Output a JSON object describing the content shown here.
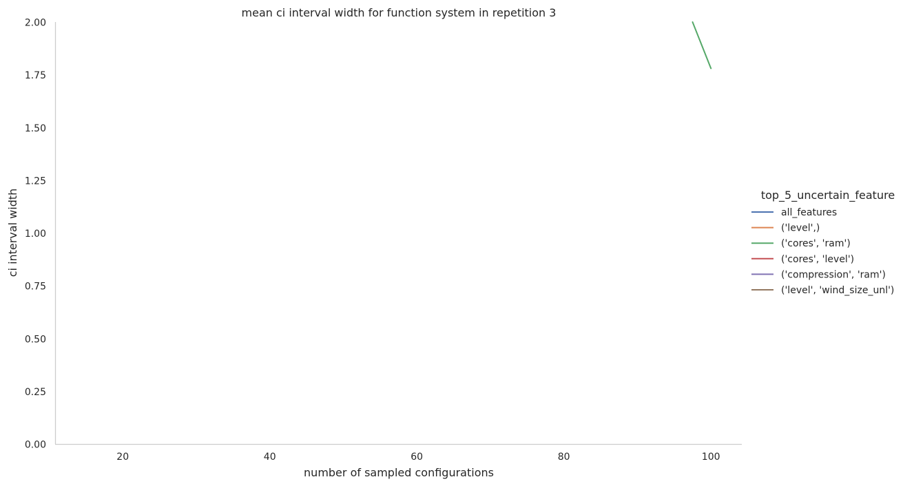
{
  "chart_data": {
    "type": "line",
    "title": "mean ci interval width for function system in repetition 3",
    "xlabel": "number of sampled configurations",
    "ylabel": "ci interval width",
    "xlim": [
      10.8,
      104.2
    ],
    "ylim": [
      0,
      2.0
    ],
    "x_ticks": [
      20,
      40,
      60,
      80,
      100
    ],
    "x_tick_labels": [
      "20",
      "40",
      "60",
      "80",
      "100"
    ],
    "y_ticks": [
      0,
      0.25,
      0.5,
      0.75,
      1.0,
      1.25,
      1.5,
      1.75,
      2.0
    ],
    "y_tick_labels": [
      "0.00",
      "0.25",
      "0.50",
      "0.75",
      "1.00",
      "1.25",
      "1.50",
      "1.75",
      "2.00"
    ],
    "grid": false,
    "legend": {
      "title": "top_5_uncertain_feature",
      "position": "center-right"
    },
    "series": [
      {
        "name": "all_features",
        "color": "#4c72b0",
        "x": [],
        "y": []
      },
      {
        "name": "('level',)",
        "color": "#dd8452",
        "x": [],
        "y": []
      },
      {
        "name": "('cores', 'ram')",
        "color": "#55a868",
        "x": [
          97.5,
          100
        ],
        "y": [
          2.0,
          1.78
        ]
      },
      {
        "name": "('cores', 'level')",
        "color": "#c44e52",
        "x": [],
        "y": []
      },
      {
        "name": "('compression', 'ram')",
        "color": "#8172b3",
        "x": [],
        "y": []
      },
      {
        "name": "('level', 'wind_size_unl')",
        "color": "#937860",
        "x": [],
        "y": []
      }
    ]
  }
}
